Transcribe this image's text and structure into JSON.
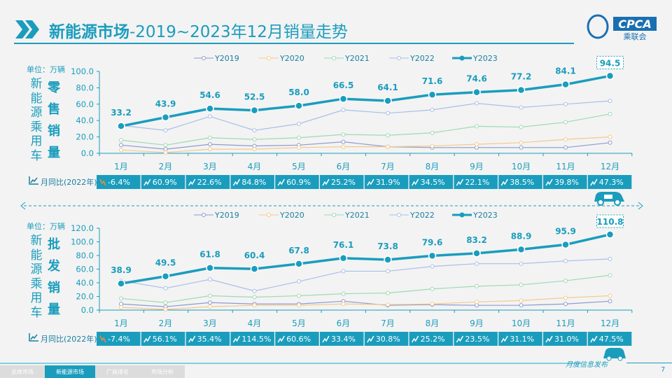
{
  "title": {
    "bold": "新能源市场",
    "rest": "-2019~2023年12月销量走势"
  },
  "logo": {
    "text": "CPCA",
    "sub": "乘联会"
  },
  "colors": {
    "accent": "#1a9dbd",
    "Y2019": "#8e9ad0",
    "Y2020": "#f5c98a",
    "Y2021": "#9ed9b5",
    "Y2022": "#a8bfe8",
    "Y2023": "#1a9dbd"
  },
  "unit_label": "单位：万辆",
  "side_label": "新能源乘用车",
  "yoy_label": "月同比(2022年)",
  "chart_data": [
    {
      "type": "line",
      "name_label": "零售销量",
      "ylim": [
        0,
        100
      ],
      "yticks": [
        "0.0",
        "20.0",
        "40.0",
        "60.0",
        "80.0",
        "100.0"
      ],
      "categories": [
        "1月",
        "2月",
        "3月",
        "4月",
        "5月",
        "6月",
        "7月",
        "8月",
        "9月",
        "10月",
        "11月",
        "12月"
      ],
      "legend": "top",
      "series": [
        {
          "name": "Y2019",
          "values": [
            10,
            5,
            11,
            9,
            10,
            14,
            8,
            7,
            7,
            7,
            7,
            13
          ]
        },
        {
          "name": "Y2020",
          "values": [
            4,
            1,
            5,
            5,
            7,
            8,
            8,
            9,
            11,
            13,
            17,
            20
          ]
        },
        {
          "name": "Y2021",
          "values": [
            16,
            10,
            19,
            17,
            19,
            23,
            22,
            25,
            33,
            32,
            38,
            48
          ]
        },
        {
          "name": "Y2022",
          "values": [
            34,
            28,
            45,
            28,
            36,
            53,
            49,
            53,
            61,
            56,
            60,
            64
          ]
        },
        {
          "name": "Y2023",
          "values": [
            33.2,
            43.9,
            54.6,
            52.5,
            58.0,
            66.5,
            64.1,
            71.6,
            74.6,
            77.2,
            84.1,
            94.5
          ],
          "labels": [
            "33.2",
            "43.9",
            "54.6",
            "52.5",
            "58.0",
            "66.5",
            "64.1",
            "71.6",
            "74.6",
            "77.2",
            "84.1",
            "94.5"
          ]
        }
      ],
      "yoy": [
        "-6.4%",
        "60.9%",
        "22.6%",
        "84.8%",
        "60.9%",
        "25.2%",
        "31.9%",
        "34.5%",
        "22.1%",
        "38.5%",
        "39.8%",
        "47.3%"
      ]
    },
    {
      "type": "line",
      "name_label": "批发销量",
      "ylim": [
        0,
        120
      ],
      "yticks": [
        "0.0",
        "20.0",
        "40.0",
        "60.0",
        "80.0",
        "100.0",
        "120.0"
      ],
      "categories": [
        "1月",
        "2月",
        "3月",
        "4月",
        "5月",
        "6月",
        "7月",
        "8月",
        "9月",
        "10月",
        "11月",
        "12月"
      ],
      "legend": "top",
      "series": [
        {
          "name": "Y2019",
          "values": [
            9,
            5,
            11,
            9,
            9,
            13,
            7,
            8,
            7,
            7,
            9,
            13
          ]
        },
        {
          "name": "Y2020",
          "values": [
            4,
            1,
            5,
            7,
            7,
            9,
            8,
            9,
            12,
            14,
            18,
            21
          ]
        },
        {
          "name": "Y2021",
          "values": [
            17,
            11,
            21,
            19,
            21,
            24,
            25,
            31,
            35,
            37,
            43,
            51
          ]
        },
        {
          "name": "Y2022",
          "values": [
            43,
            32,
            45,
            28,
            42,
            57,
            57,
            64,
            68,
            68,
            72,
            75
          ]
        },
        {
          "name": "Y2023",
          "values": [
            38.9,
            49.5,
            61.8,
            60.4,
            67.8,
            76.1,
            73.8,
            79.6,
            83.2,
            88.9,
            95.9,
            110.8
          ],
          "labels": [
            "38.9",
            "49.5",
            "61.8",
            "60.4",
            "67.8",
            "76.1",
            "73.8",
            "79.6",
            "83.2",
            "88.9",
            "95.9",
            "110.8"
          ]
        }
      ],
      "yoy": [
        "-7.4%",
        "56.1%",
        "35.4%",
        "114.5%",
        "60.6%",
        "33.4%",
        "30.8%",
        "25.2%",
        "23.5%",
        "31.1%",
        "31.0%",
        "47.5%"
      ]
    }
  ],
  "footer": {
    "tabs": [
      "总体市场",
      "新能源市场",
      "厂商排名",
      "市场分析"
    ],
    "active": 1,
    "release": "月度信息发布",
    "page": "7"
  }
}
